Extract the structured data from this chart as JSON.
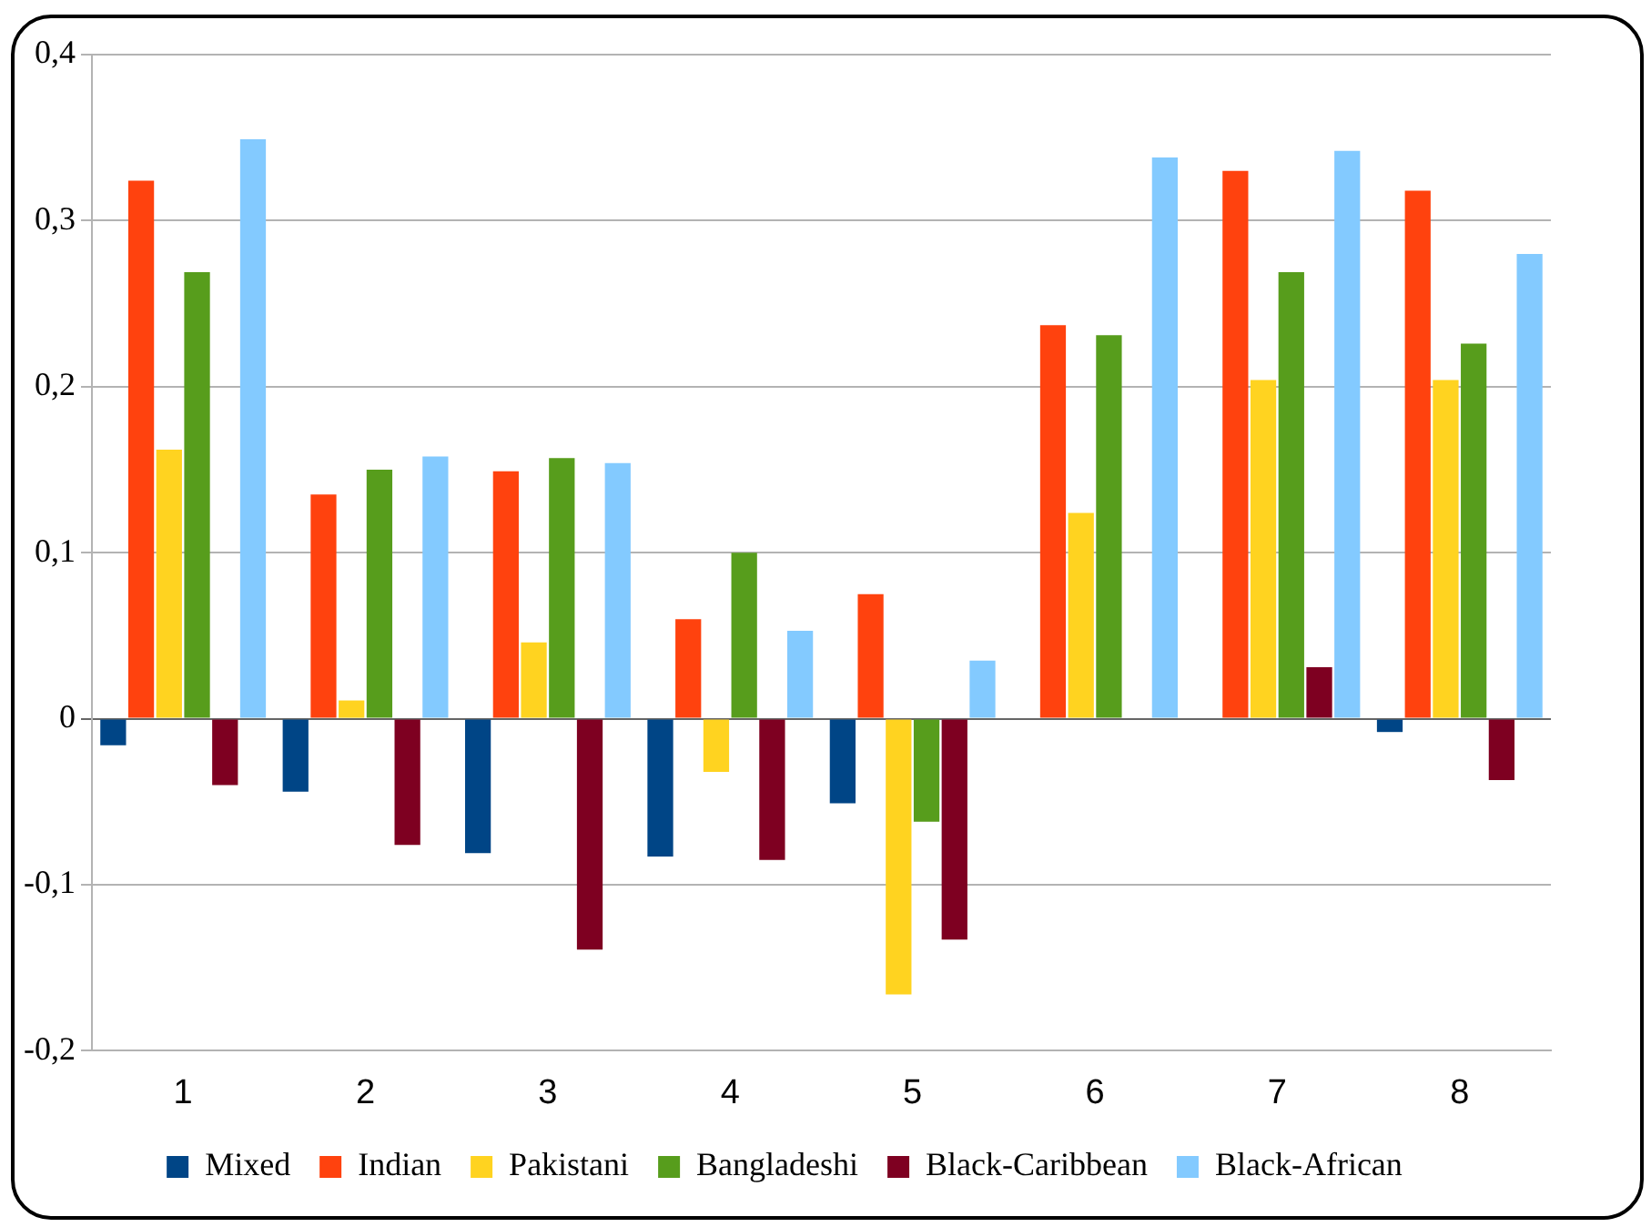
{
  "chart_data": {
    "type": "bar",
    "categories": [
      "1",
      "2",
      "3",
      "4",
      "5",
      "6",
      "7",
      "8"
    ],
    "series": [
      {
        "name": "Mixed",
        "color": "#004586",
        "values": [
          -0.016,
          -0.044,
          -0.081,
          -0.083,
          -0.051,
          null,
          null,
          -0.008
        ]
      },
      {
        "name": "Indian",
        "color": "#ff420e",
        "values": [
          0.324,
          0.135,
          0.149,
          0.06,
          0.075,
          0.237,
          0.33,
          0.318
        ]
      },
      {
        "name": "Pakistani",
        "color": "#ffd320",
        "values": [
          0.162,
          0.011,
          0.046,
          -0.032,
          -0.166,
          0.124,
          0.204,
          0.204
        ]
      },
      {
        "name": "Bangladeshi",
        "color": "#579d1c",
        "values": [
          0.269,
          0.15,
          0.157,
          0.1,
          -0.062,
          0.231,
          0.269,
          0.226
        ]
      },
      {
        "name": "Black-Caribbean",
        "color": "#7e0021",
        "values": [
          -0.04,
          -0.076,
          -0.139,
          -0.085,
          -0.133,
          null,
          0.031,
          -0.037
        ]
      },
      {
        "name": "Black-African",
        "color": "#83caff",
        "values": [
          0.349,
          0.158,
          0.154,
          0.053,
          0.035,
          0.338,
          0.342,
          0.28
        ]
      }
    ],
    "ylim": [
      -0.2,
      0.4
    ],
    "yticks": [
      {
        "value": -0.2,
        "label": "-0,2"
      },
      {
        "value": -0.1,
        "label": "-0,1"
      },
      {
        "value": 0,
        "label": "0"
      },
      {
        "value": 0.1,
        "label": "0,1"
      },
      {
        "value": 0.2,
        "label": "0,2"
      },
      {
        "value": 0.3,
        "label": "0,3"
      },
      {
        "value": 0.4,
        "label": "0,4"
      }
    ],
    "grid": "y",
    "legend": "bottom"
  }
}
